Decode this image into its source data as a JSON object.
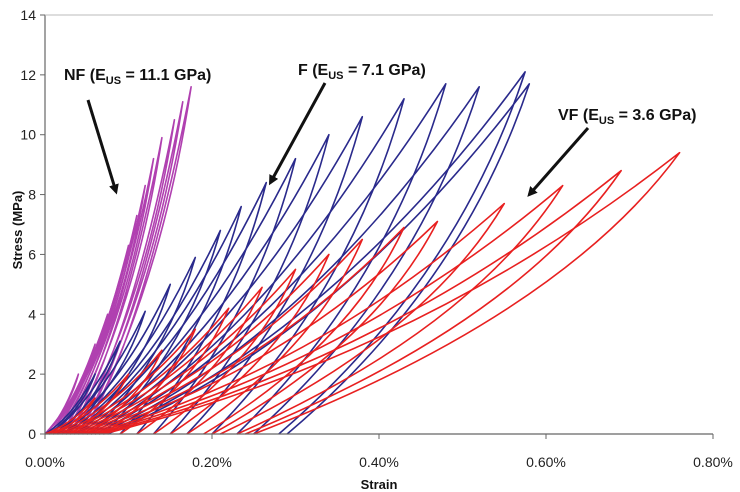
{
  "chart_data": {
    "type": "line",
    "xlabel": "Strain",
    "ylabel": "Stress (MPa)",
    "xlim": [
      0,
      0.8
    ],
    "ylim": [
      0,
      14
    ],
    "x_ticks": [
      0,
      0.2,
      0.4,
      0.6,
      0.8
    ],
    "x_tick_labels": [
      "0.00%",
      "0.20%",
      "0.40%",
      "0.60%",
      "0.80%"
    ],
    "y_ticks": [
      0,
      2,
      4,
      6,
      8,
      10,
      12,
      14
    ],
    "y_tick_labels": [
      "0",
      "2",
      "4",
      "6",
      "8",
      "10",
      "12",
      "14"
    ],
    "grid": false,
    "legend": "none",
    "series": [
      {
        "color": "#b040b0",
        "loops": [
          {
            "start": 0.0,
            "peak": [
              0.04,
              2.0
            ],
            "end": 0.0
          },
          {
            "start": 0.0,
            "peak": [
              0.06,
              3.0
            ],
            "end": 0.0
          },
          {
            "start": 0.0,
            "peak": [
              0.075,
              4.0
            ],
            "end": 0.0
          },
          {
            "start": 0.005,
            "peak": [
              0.09,
              5.2
            ],
            "end": 0.005
          },
          {
            "start": 0.01,
            "peak": [
              0.1,
              6.3
            ],
            "end": 0.01
          },
          {
            "start": 0.015,
            "peak": [
              0.11,
              7.3
            ],
            "end": 0.015
          },
          {
            "start": 0.02,
            "peak": [
              0.12,
              8.3
            ],
            "end": 0.02
          },
          {
            "start": 0.025,
            "peak": [
              0.13,
              9.2
            ],
            "end": 0.025
          },
          {
            "start": 0.03,
            "peak": [
              0.14,
              9.9
            ],
            "end": 0.03
          },
          {
            "start": 0.035,
            "peak": [
              0.155,
              10.5
            ],
            "end": 0.035
          },
          {
            "start": 0.04,
            "peak": [
              0.165,
              11.1
            ],
            "end": 0.04
          },
          {
            "start": 0.045,
            "peak": [
              0.175,
              11.6
            ],
            "end": 0.045
          }
        ]
      },
      {
        "color": "#2a2a8c",
        "loops": [
          {
            "start": 0.0,
            "peak": [
              0.06,
              2.0
            ],
            "end": 0.005
          },
          {
            "start": 0.005,
            "peak": [
              0.09,
              3.1
            ],
            "end": 0.015
          },
          {
            "start": 0.01,
            "peak": [
              0.12,
              4.1
            ],
            "end": 0.025
          },
          {
            "start": 0.015,
            "peak": [
              0.15,
              5.0
            ],
            "end": 0.04
          },
          {
            "start": 0.02,
            "peak": [
              0.18,
              5.9
            ],
            "end": 0.055
          },
          {
            "start": 0.025,
            "peak": [
              0.21,
              6.8
            ],
            "end": 0.07
          },
          {
            "start": 0.03,
            "peak": [
              0.235,
              7.6
            ],
            "end": 0.09
          },
          {
            "start": 0.035,
            "peak": [
              0.265,
              8.4
            ],
            "end": 0.11
          },
          {
            "start": 0.04,
            "peak": [
              0.3,
              9.2
            ],
            "end": 0.13
          },
          {
            "start": 0.045,
            "peak": [
              0.34,
              10.0
            ],
            "end": 0.15
          },
          {
            "start": 0.05,
            "peak": [
              0.38,
              10.6
            ],
            "end": 0.17
          },
          {
            "start": 0.055,
            "peak": [
              0.43,
              11.2
            ],
            "end": 0.2
          },
          {
            "start": 0.06,
            "peak": [
              0.48,
              11.7
            ],
            "end": 0.23
          },
          {
            "start": 0.065,
            "peak": [
              0.52,
              11.6
            ],
            "end": 0.25
          },
          {
            "start": 0.07,
            "peak": [
              0.575,
              12.1
            ],
            "end": 0.28
          },
          {
            "start": 0.075,
            "peak": [
              0.58,
              11.7
            ],
            "end": 0.29
          }
        ]
      },
      {
        "color": "#e82020",
        "loops": [
          {
            "start": 0.0,
            "peak": [
              0.06,
              1.2
            ],
            "end": 0.01
          },
          {
            "start": 0.005,
            "peak": [
              0.1,
              2.0
            ],
            "end": 0.03
          },
          {
            "start": 0.01,
            "peak": [
              0.14,
              2.8
            ],
            "end": 0.05
          },
          {
            "start": 0.015,
            "peak": [
              0.18,
              3.5
            ],
            "end": 0.07
          },
          {
            "start": 0.02,
            "peak": [
              0.22,
              4.2
            ],
            "end": 0.09
          },
          {
            "start": 0.025,
            "peak": [
              0.26,
              4.9
            ],
            "end": 0.11
          },
          {
            "start": 0.03,
            "peak": [
              0.3,
              5.5
            ],
            "end": 0.13
          },
          {
            "start": 0.035,
            "peak": [
              0.34,
              6.0
            ],
            "end": 0.15
          },
          {
            "start": 0.04,
            "peak": [
              0.38,
              6.5
            ],
            "end": 0.17
          },
          {
            "start": 0.045,
            "peak": [
              0.43,
              6.9
            ],
            "end": 0.19
          },
          {
            "start": 0.05,
            "peak": [
              0.47,
              7.1
            ],
            "end": 0.2
          },
          {
            "start": 0.055,
            "peak": [
              0.55,
              7.7
            ],
            "end": 0.21
          },
          {
            "start": 0.06,
            "peak": [
              0.62,
              8.3
            ],
            "end": 0.23
          },
          {
            "start": 0.065,
            "peak": [
              0.69,
              8.8
            ],
            "end": 0.24
          },
          {
            "start": 0.07,
            "peak": [
              0.76,
              9.4
            ],
            "end": 0.25
          }
        ]
      }
    ],
    "annotations": [
      {
        "main": "NF (E",
        "sub": "US",
        "tail": " = 11.1 GPa)",
        "arrow_to": [
          0.085,
          8.1
        ]
      },
      {
        "main": "F (E",
        "sub": "US",
        "tail": " = 7.1 GPa)",
        "arrow_to": [
          0.27,
          8.4
        ]
      },
      {
        "main": "VF (E",
        "sub": "US",
        "tail": " = 3.6 GPa)",
        "arrow_to": [
          0.58,
          8.0
        ]
      }
    ]
  }
}
